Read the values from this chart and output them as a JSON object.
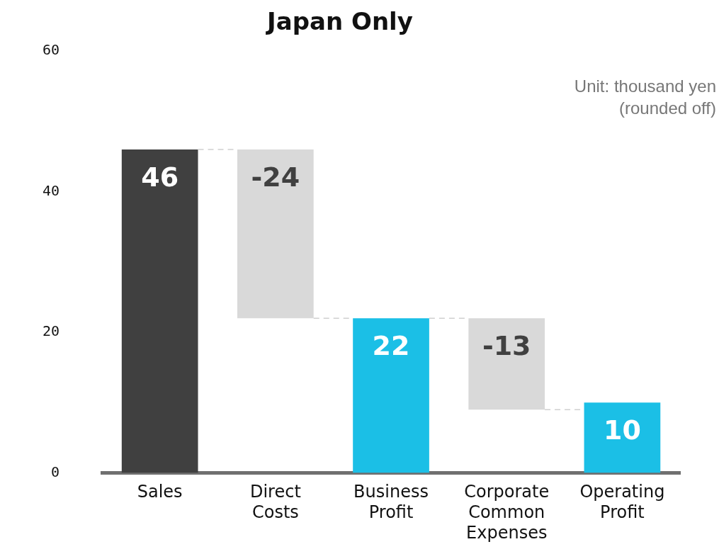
{
  "chart_data": {
    "type": "bar",
    "title": "Japan Only",
    "categories": [
      "Sales",
      "Direct Costs",
      "Business Profit",
      "Corporate Common Expenses",
      "Operating Profit"
    ],
    "values": [
      46,
      -24,
      22,
      -13,
      10
    ],
    "base": [
      0,
      46,
      0,
      22,
      0
    ],
    "colors": [
      "#404040",
      "#d9d9d9",
      "#1bbfe6",
      "#d9d9d9",
      "#1bbfe6"
    ],
    "ylim": [
      0,
      60
    ],
    "yticks": [
      0,
      20,
      40,
      60
    ],
    "grid": false,
    "legend": false,
    "data_labels": true,
    "annotations": [
      "Unit: thousand yen\n(rounded off)"
    ]
  }
}
